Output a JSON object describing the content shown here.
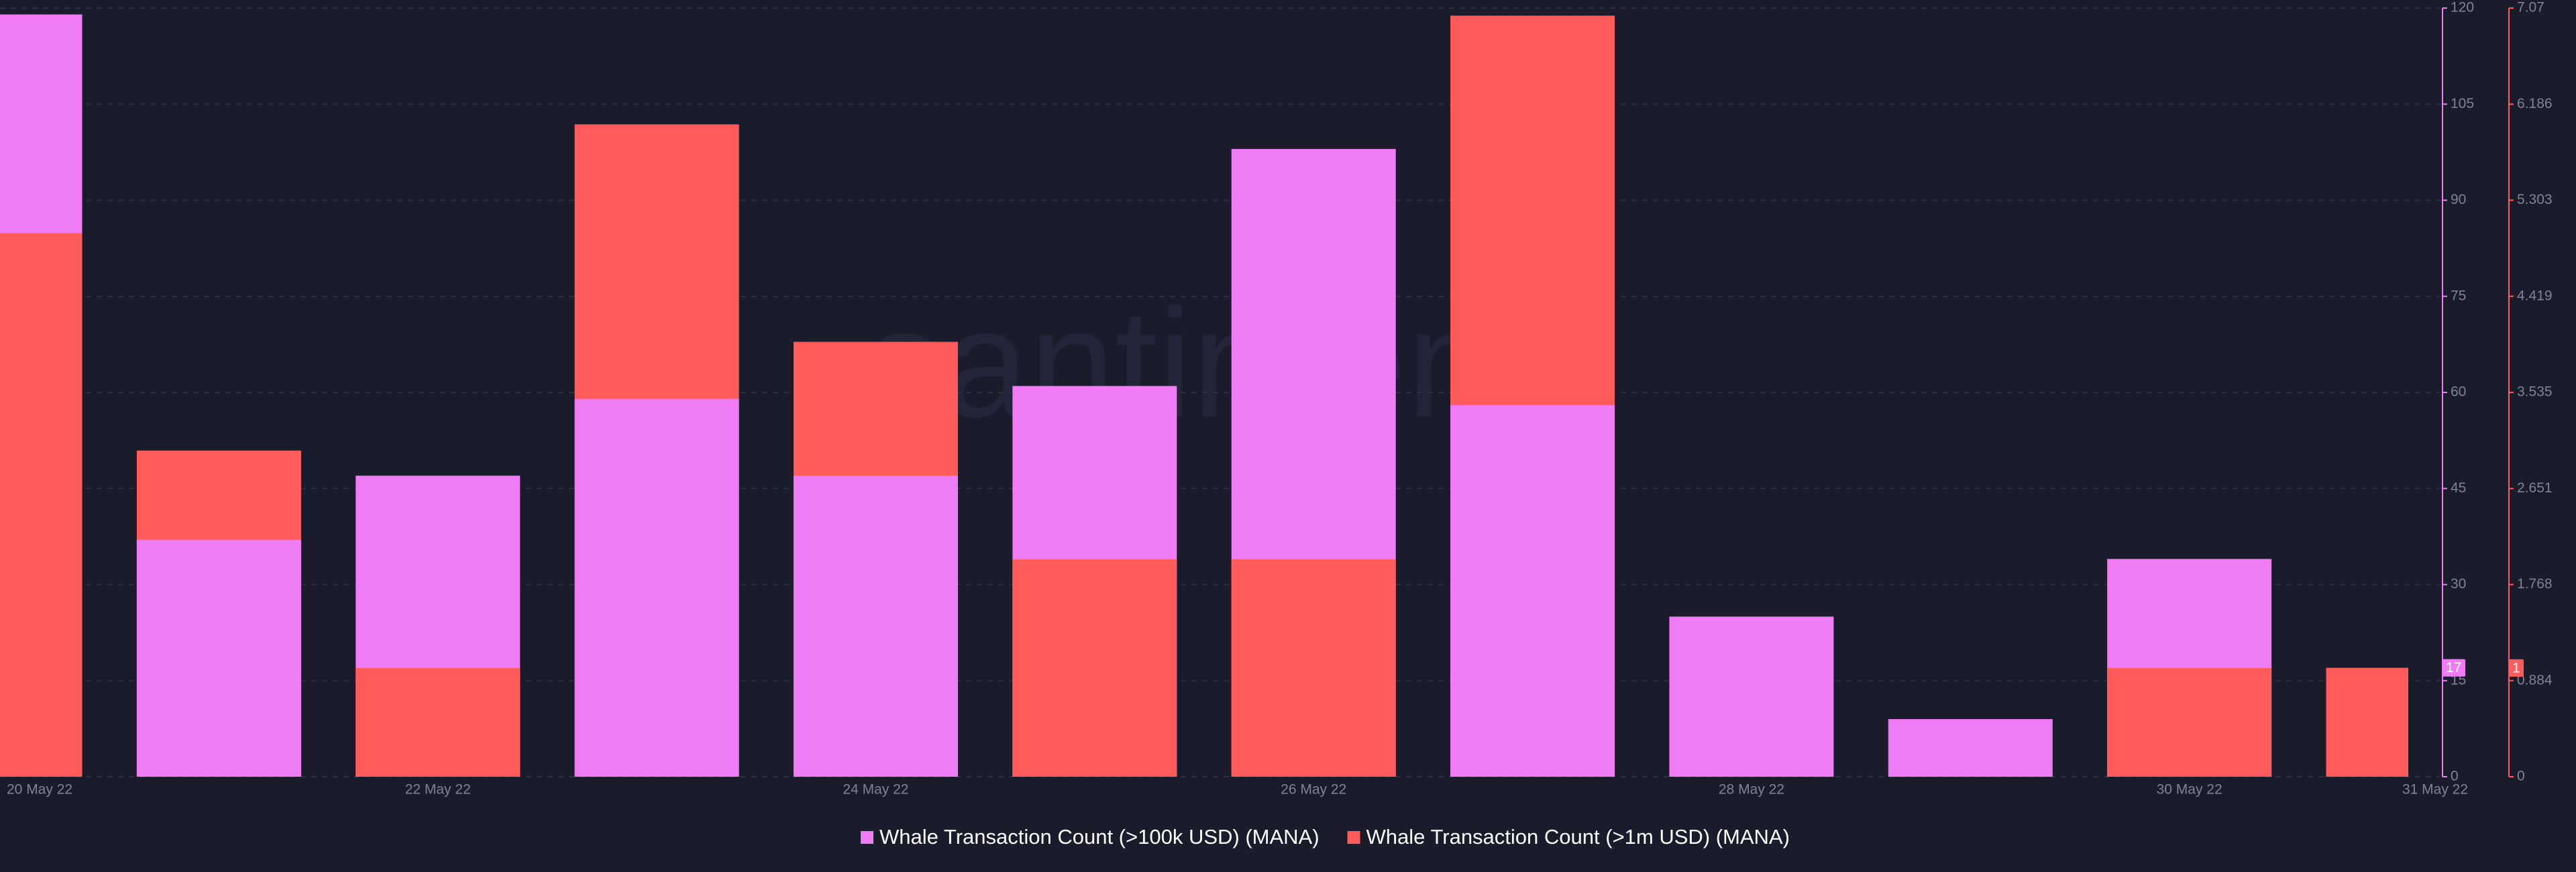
{
  "chart_data": {
    "type": "bar",
    "watermark": "santiment",
    "categories": [
      "20 May 22",
      null,
      "22 May 22",
      null,
      "24 May 22",
      null,
      "26 May 22",
      null,
      "28 May 22",
      null,
      "30 May 22",
      "31 May 22"
    ],
    "series": [
      {
        "name": "Whale Transaction Count (>100k USD) (MANA)",
        "color": "#f07cf5",
        "axis": "y",
        "values": [
          119,
          37,
          47,
          59,
          47,
          61,
          98,
          58,
          25,
          9,
          34,
          17
        ]
      },
      {
        "name": "Whale Transaction Count (>1m USD) (MANA)",
        "color": "#ff5b5b",
        "axis": "y2",
        "values": [
          5,
          3,
          1,
          6,
          4,
          2,
          2,
          7,
          0,
          0,
          1,
          1
        ]
      }
    ],
    "ylim": [
      0,
      120
    ],
    "yticks": [
      0,
      15,
      30,
      45,
      60,
      75,
      90,
      105,
      120
    ],
    "y2lim": [
      0,
      7.07
    ],
    "y2ticks": [
      0,
      0.884,
      1.768,
      2.651,
      3.535,
      4.419,
      5.303,
      6.186,
      7.07
    ],
    "grid": true
  }
}
